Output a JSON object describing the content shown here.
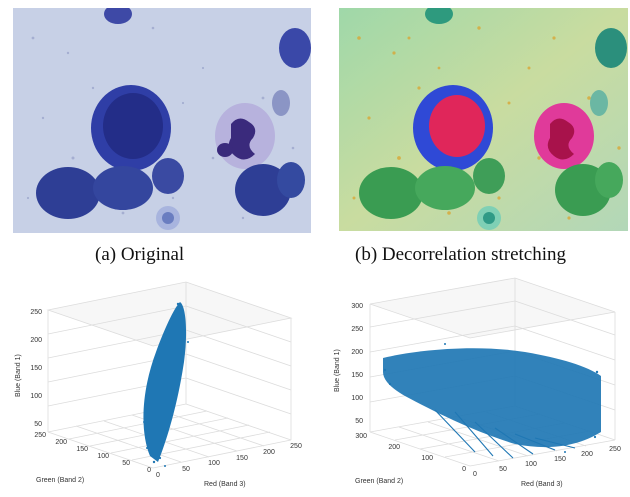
{
  "figure": {
    "panel_a": {
      "caption": "(a) Original"
    },
    "panel_b": {
      "caption": "(b) Decorrelation stretching"
    },
    "panel_c": {
      "zlabel": "Blue (Band 1)",
      "xlabel": "Red (Band 3)",
      "ylabel": "Green (Band 2)",
      "zticks": [
        "250",
        "200",
        "150",
        "100",
        "50"
      ],
      "xticks": [
        "0",
        "50",
        "100",
        "150",
        "200",
        "250"
      ],
      "yticks": [
        "250",
        "200",
        "150",
        "100",
        "50",
        "0"
      ]
    },
    "panel_d": {
      "zlabel": "Blue (Band 1)",
      "xlabel": "Red (Band 3)",
      "ylabel": "Green (Band 2)",
      "zticks": [
        "300",
        "250",
        "200",
        "150",
        "100",
        "50"
      ],
      "xticks": [
        "0",
        "50",
        "100",
        "150",
        "200",
        "250"
      ],
      "yticks": [
        "300",
        "200",
        "100",
        "0"
      ]
    }
  },
  "colors": {
    "scatter": "#1f77b4",
    "cell_dark": "#2a2f8e",
    "background_a": "#c9d2e8"
  }
}
